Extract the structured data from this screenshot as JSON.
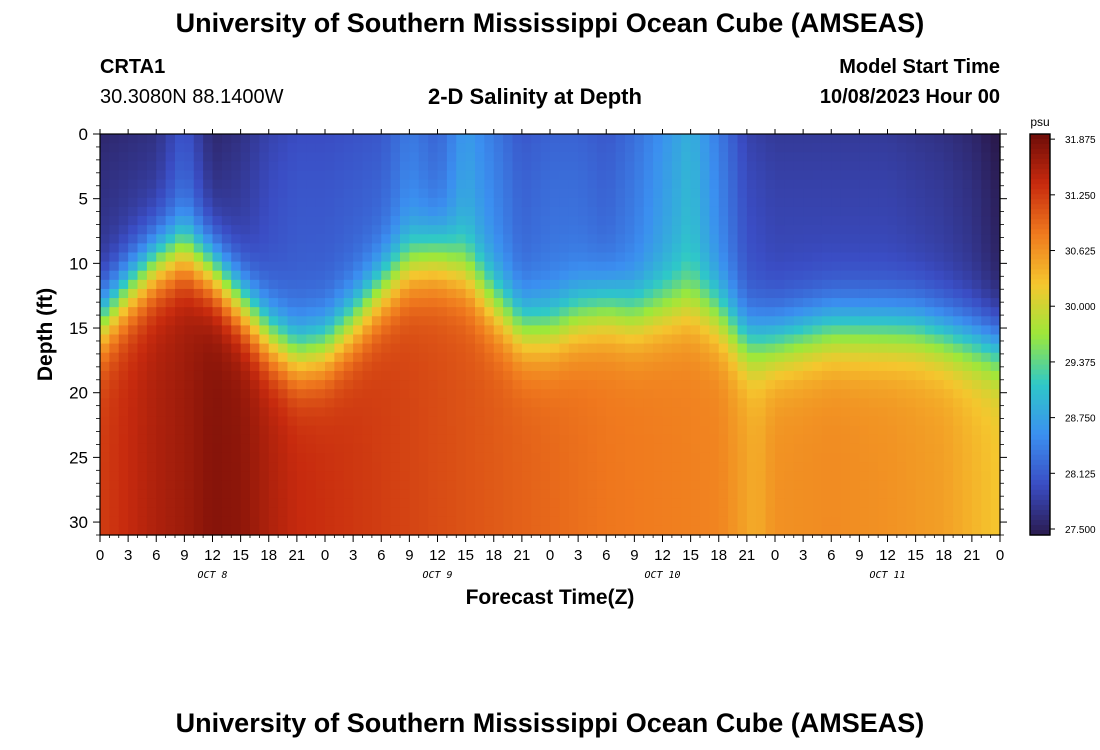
{
  "page": {
    "title": "University of Southern Mississippi Ocean Cube (AMSEAS)",
    "title_repeat": "University of Southern Mississippi Ocean Cube (AMSEAS)",
    "station_id": "CRTA1",
    "station_coords": "30.3080N  88.1400W",
    "chart_title": "2-D Salinity at Depth",
    "model_start_label": "Model Start Time",
    "model_start_value": "10/08/2023 Hour 00"
  },
  "chart_data": {
    "type": "heatmap",
    "title": "2-D Salinity at Depth",
    "xlabel": "Forecast Time(Z)",
    "ylabel": "Depth (ft)",
    "x_hours": [
      0,
      3,
      6,
      9,
      12,
      15,
      18,
      21,
      24,
      27,
      30,
      33,
      36,
      39,
      42,
      45,
      48,
      51,
      54,
      57,
      60,
      63,
      66,
      69,
      72,
      75,
      78,
      81,
      84,
      87,
      90,
      93,
      96
    ],
    "x_tick_labels": [
      "0",
      "3",
      "6",
      "9",
      "12",
      "15",
      "18",
      "21",
      "0",
      "3",
      "6",
      "9",
      "12",
      "15",
      "18",
      "21",
      "0",
      "3",
      "6",
      "9",
      "12",
      "15",
      "18",
      "21",
      "0",
      "3",
      "6",
      "9",
      "12",
      "15",
      "18",
      "21",
      "0"
    ],
    "day_labels": [
      {
        "text": "OCT 8",
        "hour": 12
      },
      {
        "text": "OCT 9",
        "hour": 36
      },
      {
        "text": "OCT 10",
        "hour": 60
      },
      {
        "text": "OCT 11",
        "hour": 84
      }
    ],
    "xlim": [
      0,
      96
    ],
    "y_ticks": [
      0,
      5,
      10,
      15,
      20,
      25,
      30
    ],
    "ylim": [
      0,
      31
    ],
    "depth_ft": [
      0,
      2,
      4,
      6,
      8,
      10,
      12,
      14,
      16,
      18,
      20,
      22,
      24,
      26,
      28,
      30,
      31
    ],
    "halocline_depth_ft": [
      [
        0,
        14.5
      ],
      [
        3,
        12
      ],
      [
        6,
        10
      ],
      [
        9,
        9
      ],
      [
        12,
        10.5
      ],
      [
        15,
        13
      ],
      [
        18,
        15.5
      ],
      [
        21,
        17
      ],
      [
        24,
        16.5
      ],
      [
        27,
        14.5
      ],
      [
        30,
        12
      ],
      [
        33,
        10
      ],
      [
        36,
        9.5
      ],
      [
        39,
        10.5
      ],
      [
        42,
        13
      ],
      [
        45,
        15
      ],
      [
        48,
        15
      ],
      [
        51,
        14
      ],
      [
        54,
        13.5
      ],
      [
        57,
        14
      ],
      [
        60,
        13.5
      ],
      [
        63,
        13
      ],
      [
        66,
        14
      ],
      [
        69,
        16
      ],
      [
        72,
        16
      ],
      [
        75,
        15.5
      ],
      [
        78,
        15
      ],
      [
        81,
        15
      ],
      [
        84,
        15
      ],
      [
        87,
        15
      ],
      [
        90,
        15.5
      ],
      [
        93,
        16
      ],
      [
        96,
        16.5
      ]
    ],
    "surface_salinity_psu": [
      [
        0,
        27.8
      ],
      [
        6,
        27.9
      ],
      [
        9,
        28.3
      ],
      [
        12,
        27.8
      ],
      [
        15,
        27.9
      ],
      [
        18,
        28.1
      ],
      [
        21,
        28.2
      ],
      [
        24,
        28.2
      ],
      [
        30,
        28.3
      ],
      [
        33,
        28.6
      ],
      [
        36,
        28.4
      ],
      [
        39,
        28.9
      ],
      [
        42,
        28.6
      ],
      [
        45,
        28.3
      ],
      [
        48,
        28.4
      ],
      [
        51,
        28.4
      ],
      [
        54,
        28.3
      ],
      [
        57,
        28.5
      ],
      [
        60,
        28.8
      ],
      [
        63,
        29.1
      ],
      [
        66,
        28.6
      ],
      [
        69,
        28.1
      ],
      [
        72,
        28.0
      ],
      [
        78,
        28.0
      ],
      [
        84,
        28.0
      ],
      [
        90,
        27.9
      ],
      [
        93,
        27.8
      ],
      [
        96,
        27.6
      ]
    ],
    "bottom_salinity_psu": [
      [
        0,
        31.3
      ],
      [
        3,
        31.45
      ],
      [
        6,
        31.6
      ],
      [
        9,
        31.7
      ],
      [
        12,
        31.85
      ],
      [
        15,
        31.8
      ],
      [
        18,
        31.6
      ],
      [
        21,
        31.45
      ],
      [
        24,
        31.4
      ],
      [
        30,
        31.3
      ],
      [
        36,
        31.2
      ],
      [
        42,
        31.1
      ],
      [
        48,
        31.0
      ],
      [
        54,
        30.9
      ],
      [
        60,
        30.85
      ],
      [
        66,
        30.8
      ],
      [
        70,
        30.5
      ],
      [
        72,
        30.7
      ],
      [
        78,
        30.75
      ],
      [
        84,
        30.7
      ],
      [
        90,
        30.6
      ],
      [
        96,
        30.3
      ]
    ],
    "colorbar": {
      "unit": "psu",
      "min": 27.5,
      "max": 32.0,
      "ticks": [
        "27.500",
        "28.125",
        "28.750",
        "29.375",
        "30.000",
        "30.625",
        "31.250",
        "31.875"
      ]
    },
    "colors": {
      "scale": [
        "#2a1a4e",
        "#3a4dc4",
        "#3b8ff0",
        "#2ec8c8",
        "#9de83a",
        "#f5c62e",
        "#f07a1e",
        "#c72a0e",
        "#6e0c08"
      ]
    }
  }
}
